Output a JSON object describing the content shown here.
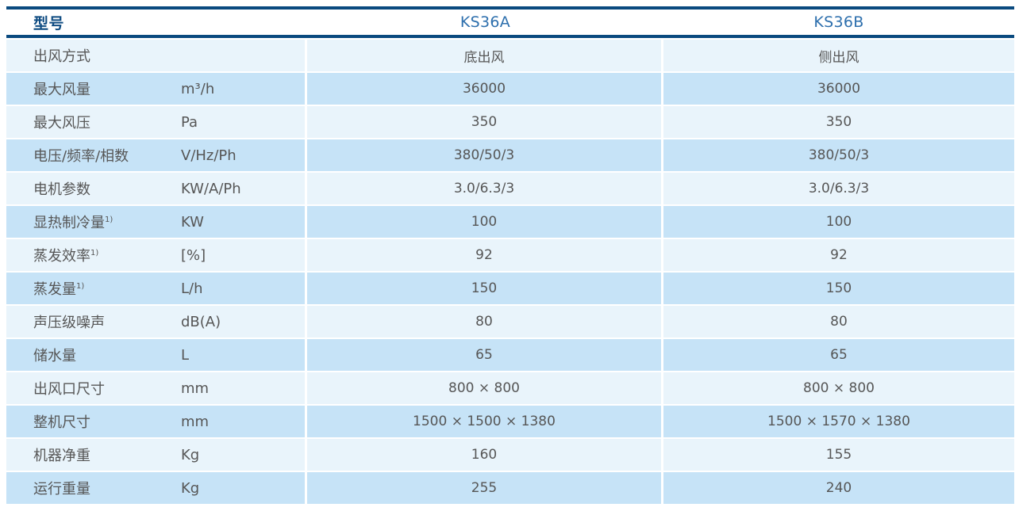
{
  "table": {
    "header": {
      "model_label": "型号",
      "col_a": "KS36A",
      "col_b": "KS36B"
    },
    "rows": [
      {
        "label": "出风方式",
        "sup": "",
        "unit": "",
        "ks36a": "底出风",
        "ks36b": "侧出风"
      },
      {
        "label": "最大风量",
        "sup": "",
        "unit": "m³/h",
        "ks36a": "36000",
        "ks36b": "36000"
      },
      {
        "label": "最大风压",
        "sup": "",
        "unit": "Pa",
        "ks36a": "350",
        "ks36b": "350"
      },
      {
        "label": "电压/频率/相数",
        "sup": "",
        "unit": "V/Hz/Ph",
        "ks36a": "380/50/3",
        "ks36b": "380/50/3"
      },
      {
        "label": "电机参数",
        "sup": "",
        "unit": "KW/A/Ph",
        "ks36a": "3.0/6.3/3",
        "ks36b": "3.0/6.3/3"
      },
      {
        "label": "显热制冷量",
        "sup": "1)",
        "unit": "KW",
        "ks36a": "100",
        "ks36b": "100"
      },
      {
        "label": "蒸发效率",
        "sup": "1)",
        "unit": "[%]",
        "ks36a": "92",
        "ks36b": "92"
      },
      {
        "label": "蒸发量",
        "sup": "1)",
        "unit": "L/h",
        "ks36a": "150",
        "ks36b": "150"
      },
      {
        "label": "声压级噪声",
        "sup": "",
        "unit": "dB(A)",
        "ks36a": "80",
        "ks36b": "80"
      },
      {
        "label": "储水量",
        "sup": "",
        "unit": "L",
        "ks36a": "65",
        "ks36b": "65"
      },
      {
        "label": "出风口尺寸",
        "sup": "",
        "unit": "mm",
        "ks36a": "800 × 800",
        "ks36b": "800 × 800"
      },
      {
        "label": "整机尺寸",
        "sup": "",
        "unit": "mm",
        "ks36a": "1500 × 1500 × 1380",
        "ks36b": "1500 × 1570 × 1380"
      },
      {
        "label": "机器净重",
        "sup": "",
        "unit": "Kg",
        "ks36a": "160",
        "ks36b": "155"
      },
      {
        "label": "运行重量",
        "sup": "",
        "unit": "Kg",
        "ks36a": "255",
        "ks36b": "240"
      }
    ],
    "colors": {
      "accent_line": "#0a4a7f",
      "header_model_text": "#0f4c82",
      "header_column_text": "#2d6fad",
      "row_light": "#e9f4fb",
      "row_dark": "#c6e3f7",
      "cell_text": "#565656"
    }
  }
}
